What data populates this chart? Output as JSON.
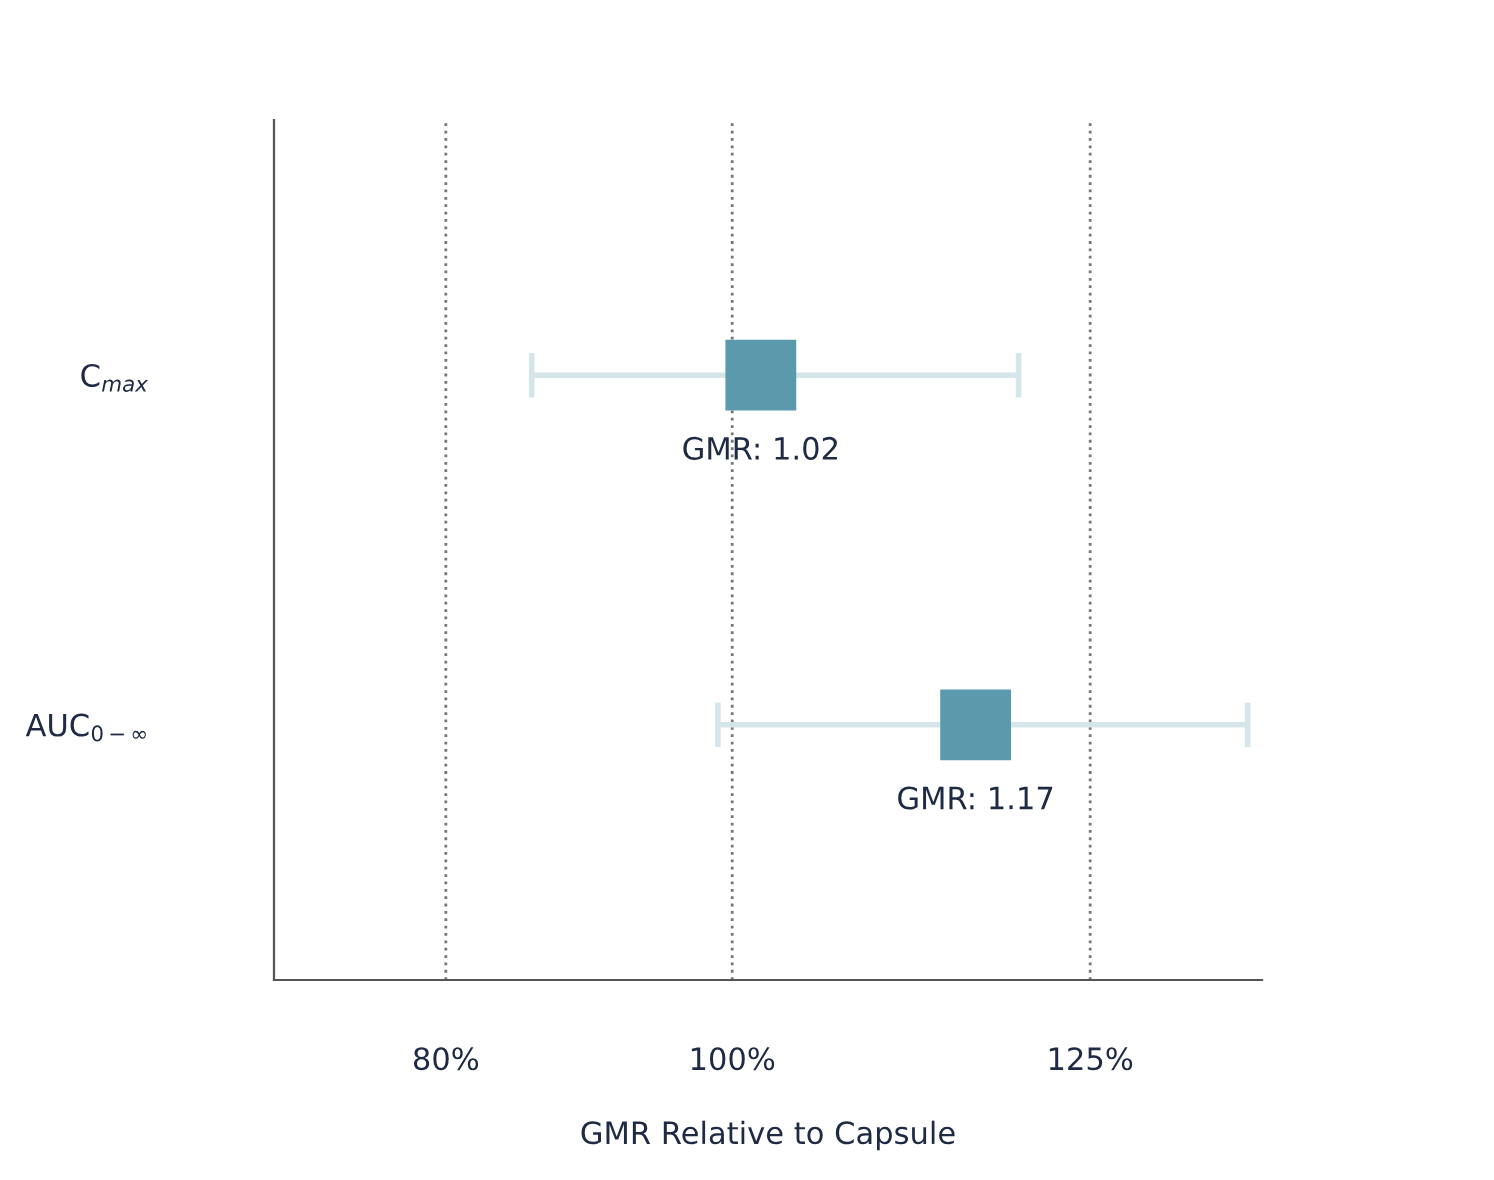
{
  "chart_data": {
    "type": "scatter",
    "orientation": "horizontal",
    "xlabel": "GMR Relative to Capsule",
    "categories": [
      "C$_{max}$",
      "AUC$_{0−∞}$"
    ],
    "color": "#5b9aad",
    "values": [
      1.02,
      1.17
    ],
    "errors": [
      [
        0.86,
        1.2
      ],
      [
        0.99,
        1.36
      ]
    ],
    "value_labels": [
      "GMR: 1.02",
      "GMR: 1.17"
    ],
    "xlim": [
      0.68,
      1.37
    ],
    "xticks": [
      {
        "value": 0.8,
        "label": "80%"
      },
      {
        "value": 1.0,
        "label": "100%"
      },
      {
        "value": 1.25,
        "label": "125%"
      }
    ],
    "grid": "x",
    "marker": "square"
  }
}
